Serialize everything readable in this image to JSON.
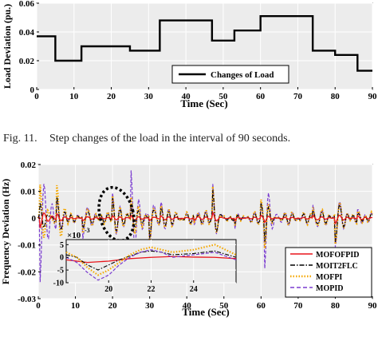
{
  "caption": {
    "label": "Fig. 11.",
    "text": "Step changes of the load in the interval of 90 seconds."
  },
  "colors": {
    "axes_bg": "#ececec",
    "grid": "#ffffff",
    "load": "#000000",
    "MOFOFPID": "#e8151b",
    "MOIT2FLC": "#000000",
    "MOFPI": "#f5a800",
    "MOPID": "#7a3bd0"
  },
  "chart_data": [
    {
      "type": "line",
      "xlabel": "Time (Sec)",
      "ylabel": "Load Deviation (pu.)",
      "xlim": [
        0,
        90
      ],
      "ylim": [
        0,
        0.06
      ],
      "xticks": [
        0,
        10,
        20,
        30,
        40,
        50,
        60,
        70,
        80,
        90
      ],
      "xtick_labels": [
        "0",
        "10",
        "20",
        "30",
        "40",
        "50",
        "60",
        "70",
        "80",
        "90"
      ],
      "yticks": [
        0,
        0.02,
        0.04,
        0.06
      ],
      "ytick_labels": [
        "0",
        "0.02",
        "0.04",
        "0.06"
      ],
      "grid": true,
      "legend_position": "bottom-right",
      "series": [
        {
          "name": "Changes of Load",
          "step": true,
          "x": [
            0,
            5,
            12,
            25,
            33,
            47,
            53,
            60,
            74,
            80,
            86,
            90
          ],
          "y": [
            0.037,
            0.02,
            0.03,
            0.027,
            0.048,
            0.034,
            0.041,
            0.051,
            0.027,
            0.024,
            0.013,
            0.013
          ]
        }
      ]
    },
    {
      "type": "line",
      "xlabel": "Time (Sec)",
      "ylabel": "Frequency Deviation (Hz)",
      "xlim": [
        0,
        90
      ],
      "ylim": [
        -0.03,
        0.02
      ],
      "xticks": [
        0,
        10,
        20,
        30,
        40,
        50,
        60,
        70,
        80,
        90
      ],
      "xtick_labels": [
        "0",
        "10",
        "20",
        "30",
        "40",
        "50",
        "60",
        "70",
        "80",
        "90"
      ],
      "yticks": [
        -0.03,
        -0.02,
        -0.01,
        0,
        0.01,
        0.02
      ],
      "ytick_labels": [
        "-0.03",
        "-0.02",
        "-0.01",
        "0",
        "0.01",
        "0.02"
      ],
      "grid": true,
      "legend_position": "bottom-right",
      "events": [
        {
          "t": 0.5,
          "MOFOFPID": -0.004,
          "MOIT2FLC": 0.004,
          "MOFPI": 0.01,
          "MOPID": -0.026
        },
        {
          "t": 5,
          "MOFOFPID": 0.002,
          "MOIT2FLC": 0.008,
          "MOFPI": 0.012,
          "MOPID": 0.009
        },
        {
          "t": 12,
          "MOFOFPID": -0.001,
          "MOIT2FLC": -0.004,
          "MOFPI": -0.006,
          "MOPID": -0.008
        },
        {
          "t": 20,
          "MOFOFPID": 0.001,
          "MOIT2FLC": 0.008,
          "MOFPI": 0.009,
          "MOPID": 0.01
        },
        {
          "t": 25,
          "MOFOFPID": 0.001,
          "MOIT2FLC": 0.004,
          "MOFPI": 0.008,
          "MOPID": 0.018
        },
        {
          "t": 30,
          "MOFOFPID": -0.001,
          "MOIT2FLC": -0.008,
          "MOFPI": -0.01,
          "MOPID": -0.012
        },
        {
          "t": 33,
          "MOFOFPID": 0.001,
          "MOIT2FLC": 0.004,
          "MOFPI": 0.005,
          "MOPID": 0.006
        },
        {
          "t": 42,
          "MOFOFPID": -0.001,
          "MOIT2FLC": -0.002,
          "MOFPI": -0.003,
          "MOPID": -0.004
        },
        {
          "t": 47,
          "MOFOFPID": 0.002,
          "MOIT2FLC": 0.01,
          "MOFPI": 0.011,
          "MOPID": 0.012
        },
        {
          "t": 53,
          "MOFOFPID": -0.001,
          "MOIT2FLC": -0.003,
          "MOFPI": -0.004,
          "MOPID": -0.005
        },
        {
          "t": 60,
          "MOFOFPID": 0.001,
          "MOIT2FLC": 0.005,
          "MOFPI": 0.006,
          "MOPID": 0.005
        },
        {
          "t": 61,
          "MOFOFPID": -0.001,
          "MOIT2FLC": -0.006,
          "MOFPI": -0.008,
          "MOPID": -0.016
        },
        {
          "t": 74,
          "MOFOFPID": 0.001,
          "MOIT2FLC": 0.003,
          "MOFPI": 0.004,
          "MOPID": 0.005
        },
        {
          "t": 80,
          "MOFOFPID": -0.002,
          "MOIT2FLC": -0.009,
          "MOFPI": -0.01,
          "MOPID": -0.011
        },
        {
          "t": 86,
          "MOFOFPID": 0.001,
          "MOIT2FLC": 0.002,
          "MOFPI": 0.003,
          "MOPID": 0.004
        }
      ],
      "series": [
        {
          "name": "MOFOFPID",
          "style": "solid"
        },
        {
          "name": "MOIT2FLC",
          "style": "dash-dot"
        },
        {
          "name": "MOFPI",
          "style": "dotted"
        },
        {
          "name": "MOPID",
          "style": "dashed"
        }
      ],
      "inset": {
        "exponent_label": "×10",
        "exponent": "-3",
        "xlim": [
          18,
          26
        ],
        "ylim": [
          -10,
          7
        ],
        "xticks": [
          20,
          22,
          24
        ],
        "xtick_labels": [
          "20",
          "22",
          "24"
        ],
        "yticks": [
          5,
          0,
          -5,
          -10
        ],
        "ytick_labels": [
          "5",
          "0",
          "-5",
          "-10"
        ],
        "series": [
          {
            "name": "MOFOFPID",
            "x": [
              18,
              18.5,
              19,
              20,
              21,
              22,
              23,
              24,
              25,
              26
            ],
            "y": [
              -1,
              -1.5,
              -2,
              -1.5,
              -0.5,
              0,
              0.3,
              0.1,
              0,
              -0.5
            ]
          },
          {
            "name": "MOIT2FLC",
            "x": [
              18,
              18.5,
              19,
              19.5,
              20,
              20.5,
              21,
              21.5,
              22,
              22.5,
              23,
              24,
              25,
              26
            ],
            "y": [
              1,
              0,
              -3,
              -5,
              -3,
              -1,
              0.5,
              2,
              2.5,
              2,
              1,
              1.5,
              2.5,
              0
            ]
          },
          {
            "name": "MOFPI",
            "x": [
              18,
              18.5,
              19,
              19.5,
              20,
              20.5,
              21,
              21.5,
              22,
              22.5,
              23,
              24,
              25,
              26
            ],
            "y": [
              2,
              0,
              -4,
              -7,
              -5,
              -2,
              1,
              3,
              4,
              3,
              2,
              3,
              5,
              1
            ]
          },
          {
            "name": "MOPID",
            "x": [
              18,
              18.5,
              19,
              19.5,
              20,
              20.5,
              21,
              21.5,
              22,
              22.5,
              23,
              24,
              25,
              26
            ],
            "y": [
              0,
              -2,
              -6,
              -9,
              -7,
              -3,
              0,
              2,
              3,
              2,
              0,
              1,
              2,
              -1
            ]
          }
        ]
      }
    }
  ]
}
